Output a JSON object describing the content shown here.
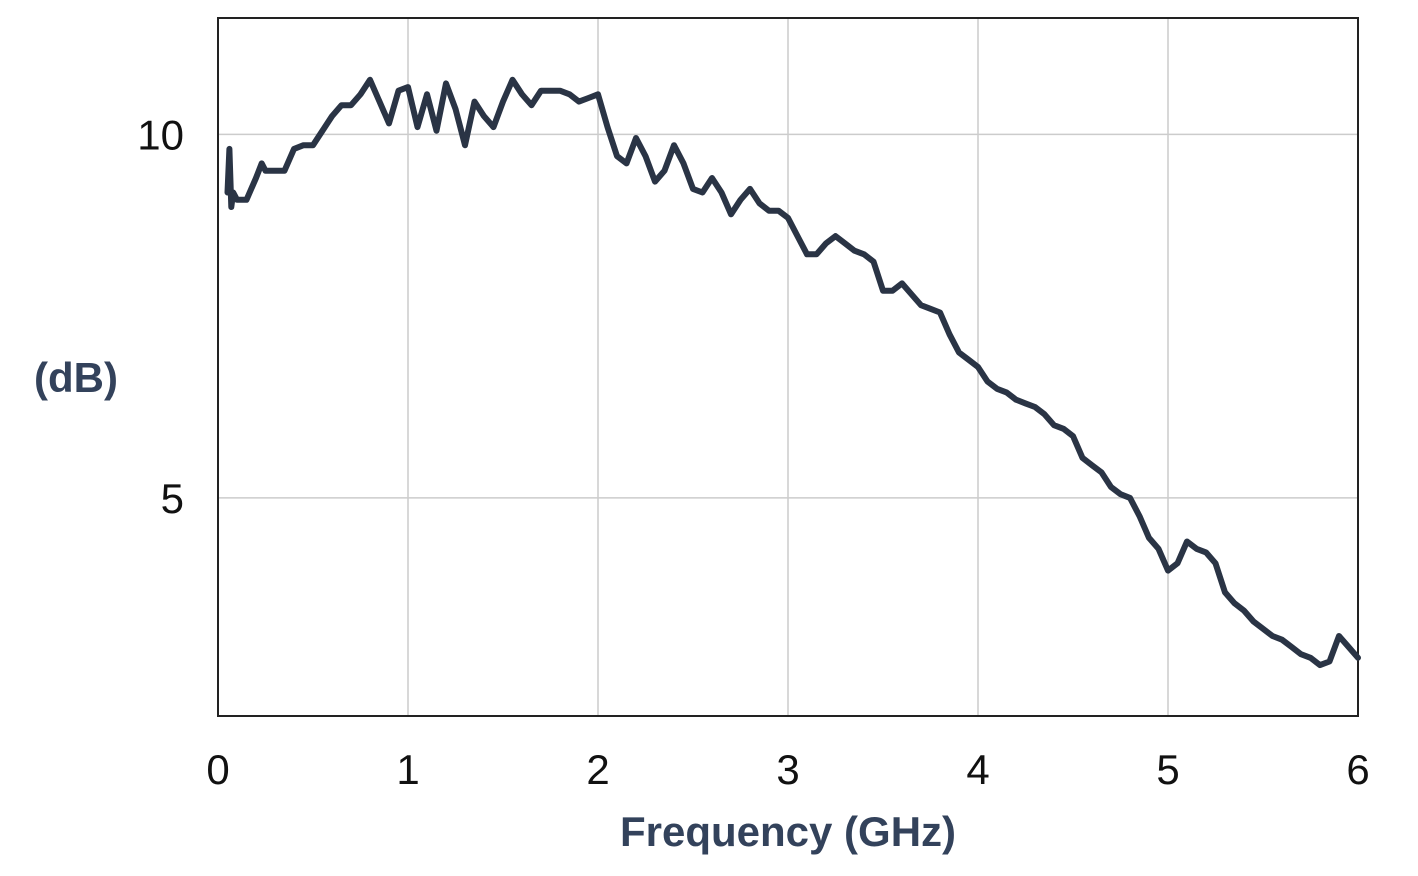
{
  "chart_data": {
    "type": "line",
    "xlabel": "Frequency (GHz)",
    "ylabel": "(dB)",
    "xlim": [
      0,
      6
    ],
    "ylim": [
      2,
      11.6
    ],
    "xticks": [
      0,
      1,
      2,
      3,
      4,
      5,
      6
    ],
    "xtick_labels": [
      "0",
      "1",
      "2",
      "3",
      "4",
      "5",
      "6"
    ],
    "yticks": [
      5,
      10
    ],
    "ytick_labels": [
      "5",
      "10"
    ],
    "grid": true,
    "legend": "none",
    "line_color": "#2a3445",
    "series": [
      {
        "x": [
          0.05,
          0.06,
          0.07,
          0.08,
          0.1,
          0.15,
          0.2,
          0.23,
          0.25,
          0.3,
          0.35,
          0.4,
          0.45,
          0.5,
          0.55,
          0.6,
          0.65,
          0.7,
          0.75,
          0.8,
          0.85,
          0.9,
          0.95,
          1.0,
          1.05,
          1.1,
          1.15,
          1.2,
          1.25,
          1.3,
          1.35,
          1.4,
          1.45,
          1.5,
          1.55,
          1.6,
          1.65,
          1.7,
          1.75,
          1.8,
          1.85,
          1.9,
          1.95,
          2.0,
          2.05,
          2.1,
          2.15,
          2.2,
          2.25,
          2.3,
          2.35,
          2.4,
          2.45,
          2.5,
          2.55,
          2.6,
          2.65,
          2.7,
          2.75,
          2.8,
          2.85,
          2.9,
          2.95,
          3.0,
          3.05,
          3.1,
          3.15,
          3.2,
          3.25,
          3.3,
          3.35,
          3.4,
          3.45,
          3.5,
          3.55,
          3.6,
          3.65,
          3.7,
          3.75,
          3.8,
          3.85,
          3.9,
          3.95,
          4.0,
          4.05,
          4.1,
          4.15,
          4.2,
          4.25,
          4.3,
          4.35,
          4.4,
          4.45,
          4.5,
          4.55,
          4.6,
          4.65,
          4.7,
          4.75,
          4.8,
          4.85,
          4.9,
          4.95,
          5.0,
          5.05,
          5.1,
          5.15,
          5.2,
          5.25,
          5.3,
          5.35,
          5.4,
          5.45,
          5.5,
          5.55,
          5.6,
          5.65,
          5.7,
          5.75,
          5.8,
          5.85,
          5.9,
          5.95,
          6.0
        ],
        "y": [
          9.2,
          9.8,
          9.0,
          9.2,
          9.1,
          9.1,
          9.4,
          9.6,
          9.5,
          9.5,
          9.5,
          9.8,
          9.85,
          9.85,
          10.05,
          10.25,
          10.4,
          10.4,
          10.55,
          10.75,
          10.45,
          10.15,
          10.6,
          10.65,
          10.1,
          10.55,
          10.05,
          10.7,
          10.35,
          9.85,
          10.45,
          10.25,
          10.1,
          10.45,
          10.75,
          10.55,
          10.4,
          10.6,
          10.6,
          10.6,
          10.55,
          10.45,
          10.5,
          10.55,
          10.1,
          9.7,
          9.6,
          9.95,
          9.7,
          9.35,
          9.5,
          9.85,
          9.6,
          9.25,
          9.2,
          9.4,
          9.2,
          8.9,
          9.1,
          9.25,
          9.05,
          8.95,
          8.95,
          8.85,
          8.6,
          8.35,
          8.35,
          8.5,
          8.6,
          8.5,
          8.4,
          8.35,
          8.25,
          7.85,
          7.85,
          7.95,
          7.8,
          7.65,
          7.6,
          7.55,
          7.25,
          7.0,
          6.9,
          6.8,
          6.6,
          6.5,
          6.45,
          6.35,
          6.3,
          6.25,
          6.15,
          6.0,
          5.95,
          5.85,
          5.55,
          5.45,
          5.35,
          5.15,
          5.05,
          5.0,
          4.75,
          4.45,
          4.3,
          4.0,
          4.1,
          4.4,
          4.3,
          4.25,
          4.1,
          3.7,
          3.55,
          3.45,
          3.3,
          3.2,
          3.1,
          3.05,
          2.95,
          2.85,
          2.8,
          2.7,
          2.75,
          3.1,
          2.95,
          2.8
        ]
      }
    ]
  }
}
